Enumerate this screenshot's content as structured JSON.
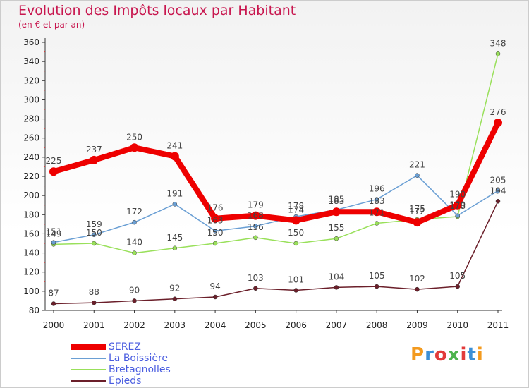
{
  "chart_data": {
    "type": "line",
    "title": "Evolution des Impôts locaux par Habitant",
    "subtitle": "(en € et par an)",
    "categories": [
      "2000",
      "2001",
      "2002",
      "2003",
      "2004",
      "2005",
      "2006",
      "2007",
      "2008",
      "2009",
      "2010",
      "2011"
    ],
    "ylim": [
      80,
      360
    ],
    "yticks": [
      80,
      100,
      120,
      140,
      160,
      180,
      200,
      220,
      240,
      260,
      280,
      300,
      320,
      340,
      360
    ],
    "grid": false,
    "legend_position": "bottom-left",
    "series": [
      {
        "name": "SEREZ",
        "color": "#ee0000",
        "values": [
          225,
          237,
          250,
          241,
          176,
          179,
          174,
          183,
          183,
          172,
          190,
          276
        ]
      },
      {
        "name": "La Boissière",
        "color": "#6a9fd4",
        "values": [
          151,
          159,
          172,
          191,
          163,
          168,
          178,
          185,
          196,
          221,
          179,
          205
        ]
      },
      {
        "name": "Bretagnolles",
        "color": "#99e05a",
        "values": [
          149,
          150,
          140,
          145,
          150,
          156,
          150,
          155,
          171,
          175,
          178,
          348
        ]
      },
      {
        "name": "Epieds",
        "color": "#6b1f2a",
        "values": [
          87,
          88,
          90,
          92,
          94,
          103,
          101,
          104,
          105,
          102,
          105,
          194
        ]
      }
    ],
    "data_labels": {
      "SEREZ": [
        "225",
        "237",
        "250",
        "241",
        "176",
        "179",
        "174",
        "183",
        "183",
        "172",
        "190",
        "276"
      ],
      "La Boissière": [
        "151",
        "159",
        "172",
        "191",
        "163",
        "168",
        "178",
        "185",
        "196",
        "221",
        "179",
        "205"
      ],
      "Bretagnolles": [
        "149",
        "150",
        "140",
        "145",
        "150",
        "156",
        "150",
        "155",
        "171",
        "175",
        "178",
        "348"
      ],
      "Epieds": [
        "87",
        "88",
        "90",
        "92",
        "94",
        "103",
        "101",
        "104",
        "105",
        "102",
        "105",
        "194"
      ]
    }
  },
  "logo": {
    "text": "Proxiti",
    "colors": [
      "#f39a1e",
      "#3b8fd6",
      "#e23b3b",
      "#4db34d",
      "#e23b3b",
      "#3b8fd6",
      "#f39a1e"
    ]
  }
}
